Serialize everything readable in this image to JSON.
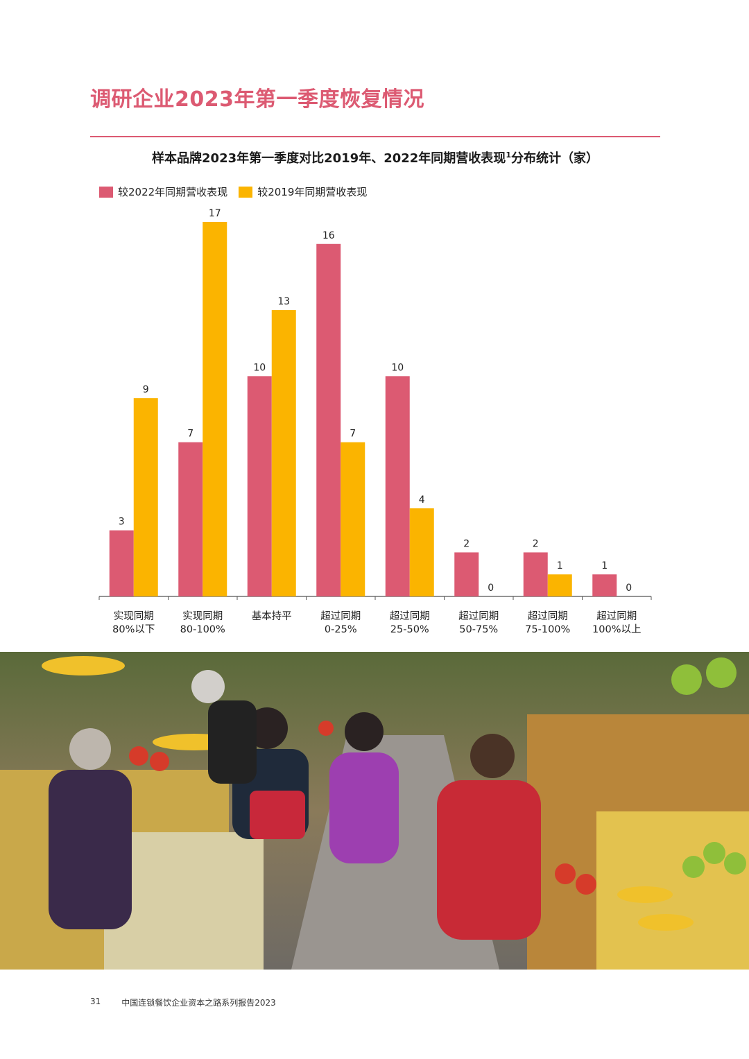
{
  "page": {
    "section_title": "调研企业2023年第一季度恢复情况",
    "page_number": "31",
    "footer_text": "中国连锁餐饮企业资本之路系列报告2023"
  },
  "colors": {
    "accent": "#dc5a72",
    "series_2022": "#dc5a72",
    "series_2019": "#fbb400"
  },
  "photo": {
    "icon": "market-photo"
  },
  "chart_data": {
    "type": "bar",
    "title": "样本品牌2023年第一季度对比2019年、2022年同期营收表现",
    "title_sup": "1",
    "title_suffix": "分布统计（家）",
    "categories": [
      [
        "实现同期",
        "80%以下"
      ],
      [
        "实现同期",
        "80-100%"
      ],
      [
        "基本持平",
        ""
      ],
      [
        "超过同期",
        "0-25%"
      ],
      [
        "超过同期",
        "25-50%"
      ],
      [
        "超过同期",
        "50-75%"
      ],
      [
        "超过同期",
        "75-100%"
      ],
      [
        "超过同期",
        "100%以上"
      ]
    ],
    "series": [
      {
        "name": "较2022年同期营收表现",
        "values": [
          3,
          7,
          10,
          16,
          10,
          2,
          2,
          1
        ]
      },
      {
        "name": "较2019年同期营收表现",
        "values": [
          9,
          17,
          13,
          7,
          4,
          0,
          1,
          0
        ]
      }
    ],
    "ylim": [
      0,
      17
    ],
    "grid": false,
    "legend": "top-left"
  }
}
